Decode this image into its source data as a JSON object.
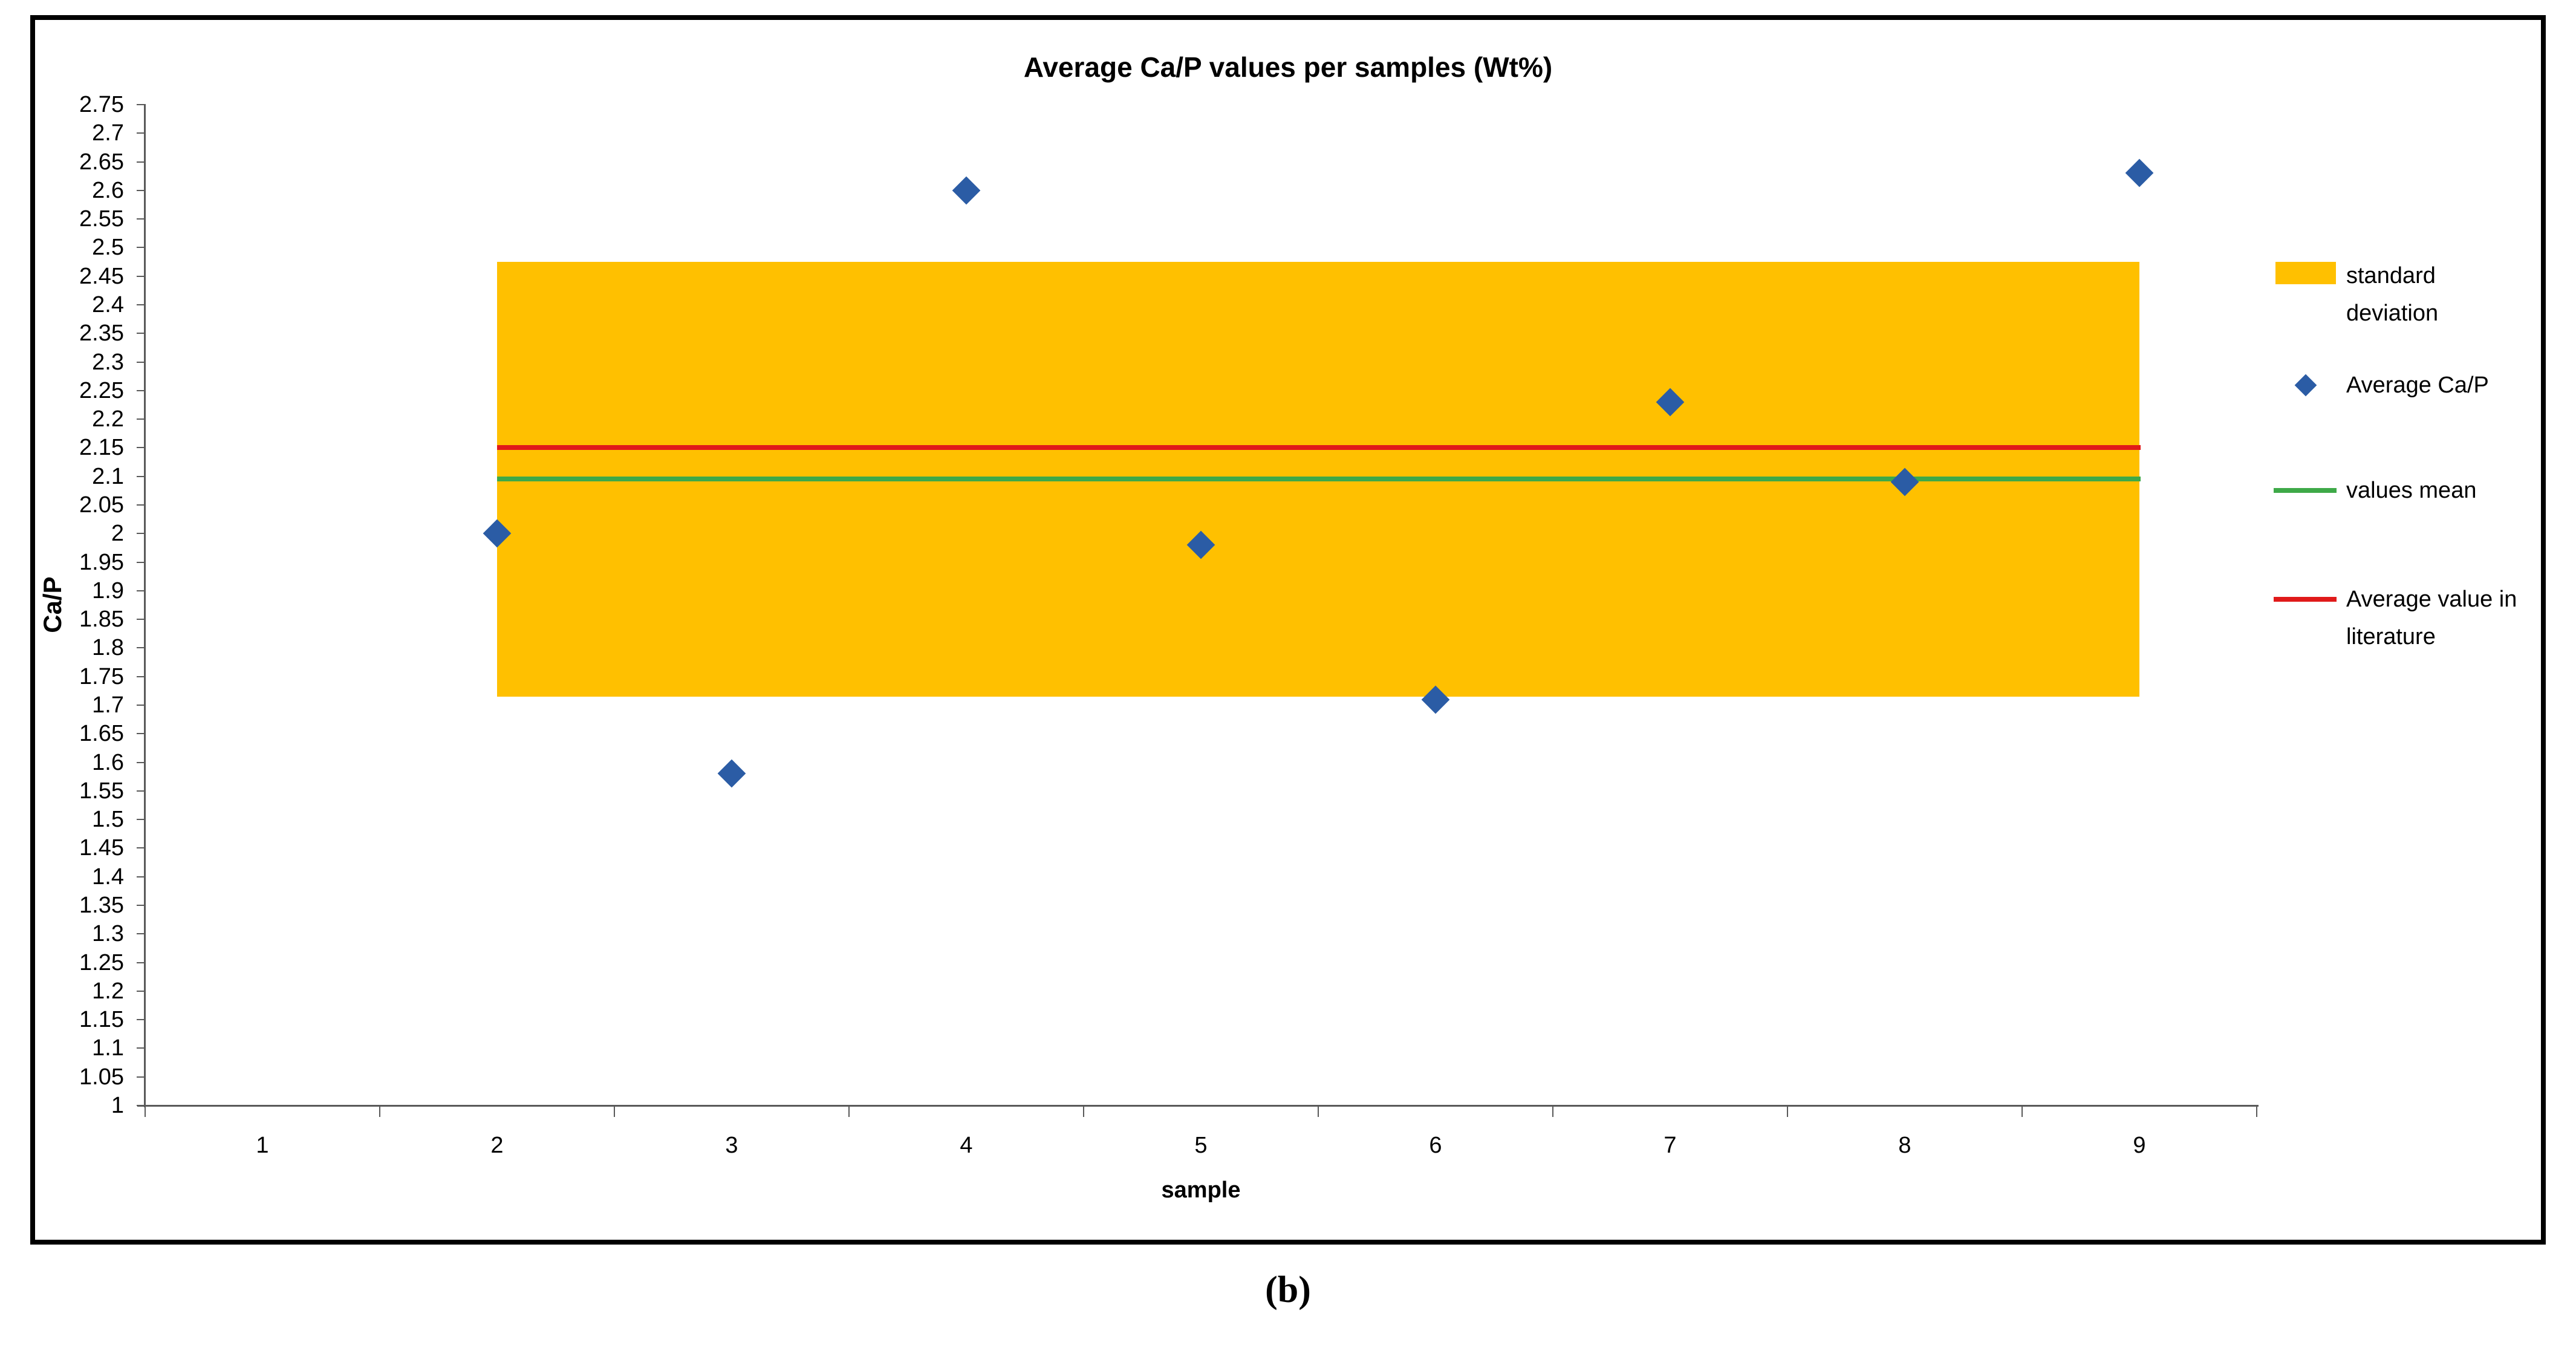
{
  "figure": {
    "caption": "(b)"
  },
  "chart_data": {
    "type": "scatter",
    "title": "Average Ca/P values per samples (Wt%)",
    "xlabel": "sample",
    "ylabel": "Ca/P",
    "x_ticks": [
      1,
      2,
      3,
      4,
      5,
      6,
      7,
      8,
      9
    ],
    "y_ticks": [
      2.75,
      2.7,
      2.65,
      2.6,
      2.55,
      2.5,
      2.45,
      2.4,
      2.35,
      2.3,
      2.25,
      2.2,
      2.15,
      2.1,
      2.05,
      2,
      1.95,
      1.9,
      1.85,
      1.8,
      1.75,
      1.7,
      1.65,
      1.6,
      1.55,
      1.5,
      1.45,
      1.4,
      1.35,
      1.3,
      1.25,
      1.2,
      1.15,
      1.1,
      1.05,
      1
    ],
    "ylim": [
      1,
      2.75
    ],
    "grid": false,
    "legend_position": "right",
    "series": [
      {
        "name": "standard deviation",
        "type": "band",
        "x_start": 2,
        "x_end": 9,
        "y_top": 2.475,
        "y_bottom": 1.715,
        "color": "#FFC000"
      },
      {
        "name": "values mean",
        "type": "hline",
        "y": 2.095,
        "x_start": 2,
        "x_end": 9,
        "color": "#3EA948"
      },
      {
        "name": "Average value in literature",
        "type": "hline",
        "y": 2.15,
        "x_start": 2,
        "x_end": 9,
        "color": "#E01A1A"
      },
      {
        "name": "Average Ca/P",
        "type": "scatter",
        "marker": "diamond",
        "color": "#2B5CA5",
        "x": [
          2,
          3,
          4,
          5,
          6,
          7,
          8,
          9
        ],
        "y": [
          2.0,
          1.58,
          2.6,
          1.98,
          1.71,
          2.23,
          2.09,
          2.63
        ]
      }
    ],
    "legend": [
      {
        "label": "standard deviation",
        "swatch": "rect",
        "color": "#FFC000"
      },
      {
        "label": "Average Ca/P",
        "swatch": "diamond",
        "color": "#2B5CA5"
      },
      {
        "label": "values mean",
        "swatch": "line",
        "color": "#3EA948"
      },
      {
        "label": "Average value in literature",
        "swatch": "line",
        "color": "#E01A1A"
      }
    ]
  }
}
